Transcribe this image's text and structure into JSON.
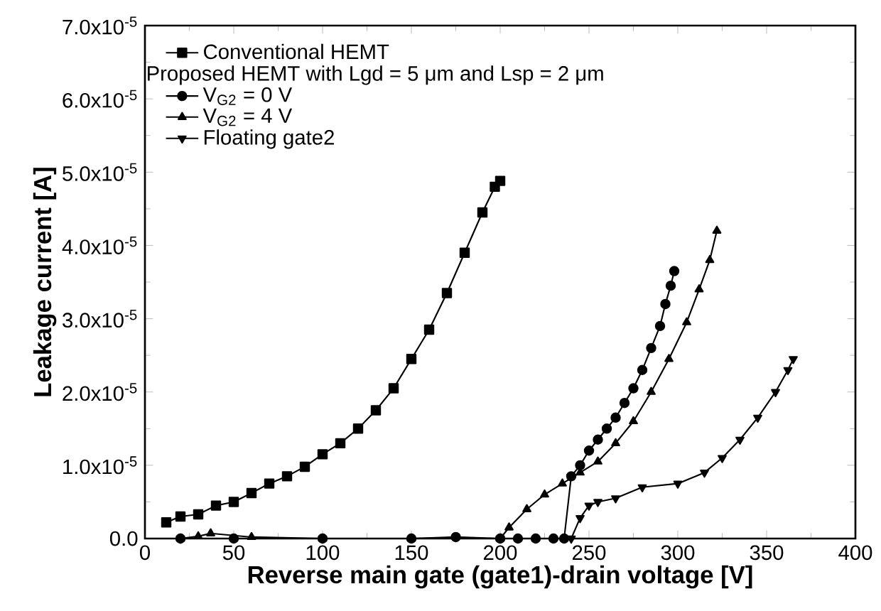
{
  "chart_data": {
    "type": "line",
    "xlabel": "Reverse main gate (gate1)-drain voltage [V]",
    "ylabel": "Leakage current [A]",
    "legend_title": "Proposed HEMT with Lgd = 5 μm and Lsp = 2 μm",
    "legend": "top left",
    "line_style": "solid",
    "grid": false,
    "xlim": [
      0,
      400
    ],
    "xticks": [
      0,
      50,
      100,
      150,
      200,
      250,
      300,
      350,
      400
    ],
    "ylim": [
      0,
      7e-05
    ],
    "yticks": [
      {
        "value": 0,
        "label": "0.0"
      },
      {
        "value": 1e-05,
        "label": "1.0x10$^{-5}$"
      },
      {
        "value": 2e-05,
        "label": "2.0x10$^{-5}$"
      },
      {
        "value": 3e-05,
        "label": "3.0x10$^{-5}$"
      },
      {
        "value": 4e-05,
        "label": "4.0x10$^{-5}$"
      },
      {
        "value": 5e-05,
        "label": "5.0x10$^{-5}$"
      },
      {
        "value": 6e-05,
        "label": "6.0x10$^{-5}$"
      },
      {
        "value": 7e-05,
        "label": "7.0x10$^{-5}$"
      }
    ],
    "series": [
      {
        "name": "Conventional HEMT",
        "color": "#000000",
        "marker": "square",
        "x": [
          12,
          20,
          30,
          40,
          50,
          60,
          70,
          80,
          90,
          100,
          110,
          120,
          130,
          140,
          150,
          160,
          170,
          180,
          190,
          197,
          200
        ],
        "values": [
          2.2e-06,
          3e-06,
          3.3e-06,
          4.5e-06,
          5e-06,
          6.2e-06,
          7.5e-06,
          8.5e-06,
          9.8e-06,
          1.15e-05,
          1.3e-05,
          1.5e-05,
          1.75e-05,
          2.05e-05,
          2.45e-05,
          2.85e-05,
          3.35e-05,
          3.9e-05,
          4.45e-05,
          4.8e-05,
          4.88e-05
        ]
      },
      {
        "name": "V$_{G2}$ = 0 V",
        "color": "#000000",
        "marker": "circle",
        "x": [
          20,
          50,
          100,
          150,
          175,
          200,
          210,
          220,
          230,
          236,
          240,
          245,
          250,
          255,
          260,
          265,
          270,
          275,
          280,
          285,
          290,
          293,
          296,
          298
        ],
        "values": [
          0,
          0,
          0,
          0,
          2e-07,
          0,
          0,
          0,
          0,
          0,
          8.5e-06,
          1e-05,
          1.2e-05,
          1.35e-05,
          1.5e-05,
          1.65e-05,
          1.85e-05,
          2.05e-05,
          2.3e-05,
          2.6e-05,
          2.9e-05,
          3.2e-05,
          3.45e-05,
          3.65e-05
        ]
      },
      {
        "name": "V$_{G2}$ = 4 V",
        "color": "#000000",
        "marker": "triangle",
        "x": [
          20,
          30,
          37,
          60,
          100,
          150,
          200,
          205,
          215,
          225,
          235,
          245,
          255,
          265,
          275,
          285,
          295,
          305,
          312,
          318,
          322
        ],
        "values": [
          0,
          3e-07,
          7e-07,
          2e-07,
          0,
          0,
          0,
          1.5e-06,
          4e-06,
          6e-06,
          7.5e-06,
          9e-06,
          1.05e-05,
          1.3e-05,
          1.6e-05,
          2e-05,
          2.45e-05,
          2.95e-05,
          3.4e-05,
          3.8e-05,
          4.2e-05
        ]
      },
      {
        "name": "Floating gate2",
        "color": "#000000",
        "marker": "triangle_down",
        "x": [
          20,
          100,
          200,
          240,
          245,
          250,
          255,
          265,
          280,
          300,
          315,
          325,
          335,
          345,
          355,
          362,
          365
        ],
        "values": [
          0,
          0,
          0,
          0,
          2.8e-06,
          4.5e-06,
          5e-06,
          5.5e-06,
          7e-06,
          7.5e-06,
          9e-06,
          1.1e-05,
          1.35e-05,
          1.65e-05,
          2e-05,
          2.3e-05,
          2.45e-05
        ]
      }
    ]
  }
}
